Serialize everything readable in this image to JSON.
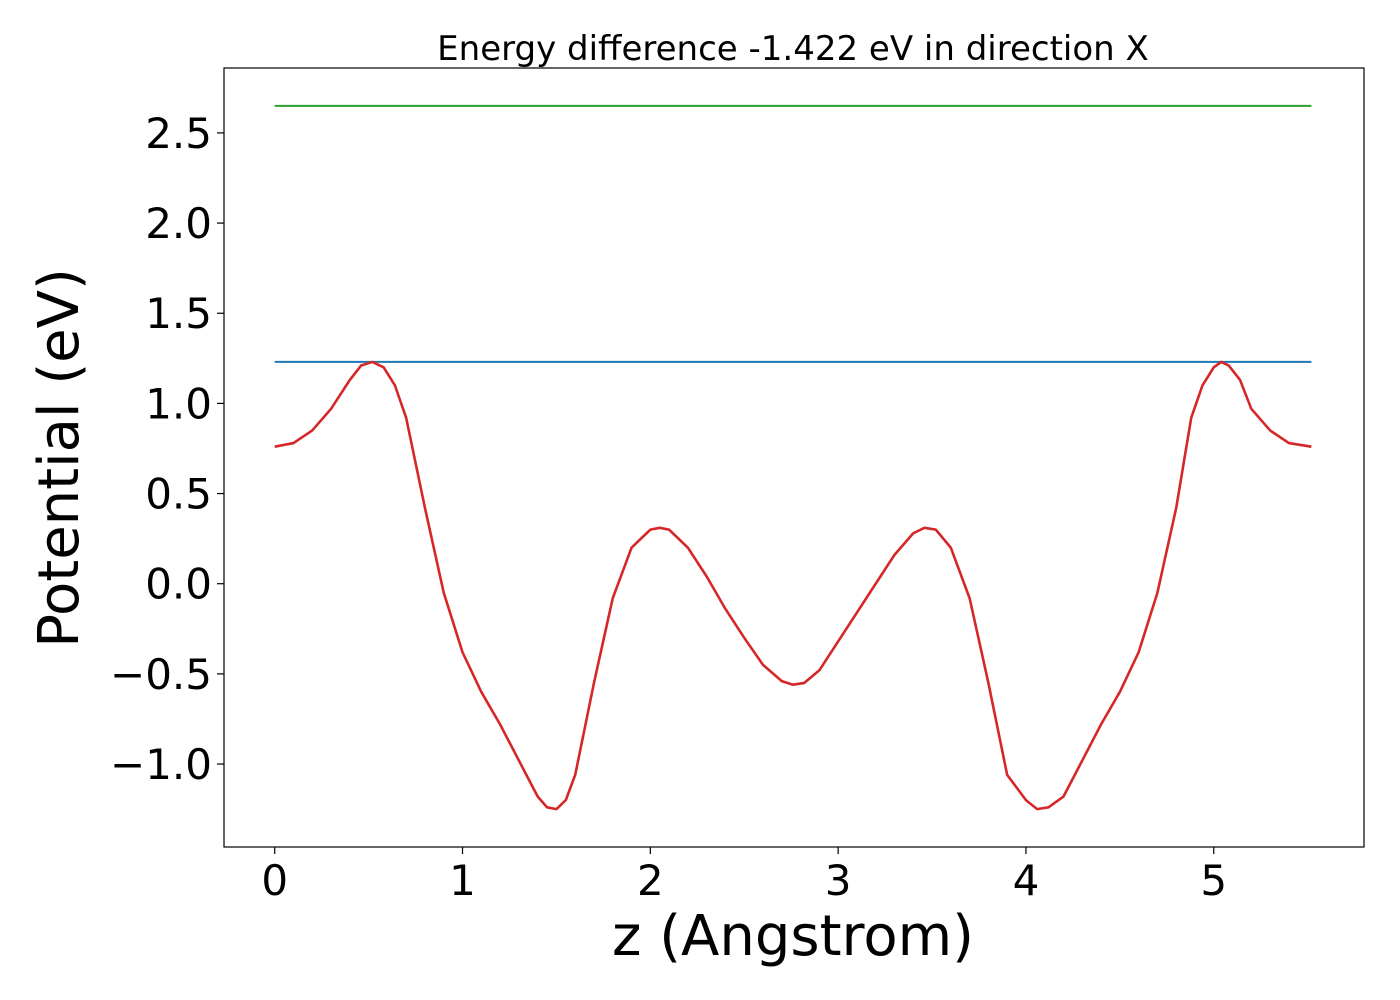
{
  "chart_data": {
    "type": "line",
    "title": "Energy difference -1.422 eV in direction X",
    "xlabel": "z (Angstrom)",
    "ylabel": "Potential (eV)",
    "xlim": [
      -0.27,
      5.8
    ],
    "ylim": [
      -1.46,
      2.86
    ],
    "xticks": [
      0,
      1,
      2,
      3,
      4,
      5
    ],
    "xtick_labels": [
      "0",
      "1",
      "2",
      "3",
      "4",
      "5"
    ],
    "yticks": [
      -1.0,
      -0.5,
      0.0,
      0.5,
      1.0,
      1.5,
      2.0,
      2.5
    ],
    "ytick_labels": [
      "−1.0",
      "−0.5",
      "0.0",
      "0.5",
      "1.0",
      "1.5",
      "2.0",
      "2.5"
    ],
    "grid": false,
    "series": [
      {
        "color": "#2ca02c",
        "x": [
          0,
          5.52
        ],
        "y": [
          2.65,
          2.65
        ]
      },
      {
        "color": "#1f77b4",
        "x": [
          0,
          5.52
        ],
        "y": [
          1.23,
          1.23
        ]
      },
      {
        "color": "#d62728",
        "x": [
          0,
          0.1,
          0.2,
          0.3,
          0.4,
          0.46,
          0.52,
          0.58,
          0.64,
          0.7,
          0.8,
          0.9,
          1.0,
          1.1,
          1.2,
          1.3,
          1.4,
          1.45,
          1.5,
          1.55,
          1.6,
          1.7,
          1.8,
          1.9,
          2.0,
          2.05,
          2.1,
          2.2,
          2.3,
          2.4,
          2.5,
          2.6,
          2.7,
          2.76,
          2.82,
          2.9,
          3.0,
          3.1,
          3.2,
          3.3,
          3.4,
          3.46,
          3.52,
          3.6,
          3.7,
          3.8,
          3.9,
          4.0,
          4.06,
          4.12,
          4.2,
          4.3,
          4.4,
          4.5,
          4.6,
          4.7,
          4.8,
          4.88,
          4.94,
          5.0,
          5.04,
          5.08,
          5.14,
          5.2,
          5.3,
          5.4,
          5.52
        ],
        "y": [
          0.76,
          0.78,
          0.85,
          0.97,
          1.13,
          1.21,
          1.23,
          1.2,
          1.1,
          0.92,
          0.42,
          -0.05,
          -0.38,
          -0.6,
          -0.78,
          -0.98,
          -1.18,
          -1.24,
          -1.25,
          -1.2,
          -1.06,
          -0.55,
          -0.08,
          0.2,
          0.3,
          0.31,
          0.3,
          0.2,
          0.04,
          -0.14,
          -0.3,
          -0.45,
          -0.54,
          -0.56,
          -0.55,
          -0.48,
          -0.32,
          -0.16,
          0.0,
          0.16,
          0.28,
          0.31,
          0.3,
          0.2,
          -0.08,
          -0.55,
          -1.06,
          -1.2,
          -1.25,
          -1.24,
          -1.18,
          -0.98,
          -0.78,
          -0.6,
          -0.38,
          -0.05,
          0.42,
          0.92,
          1.1,
          1.2,
          1.23,
          1.21,
          1.13,
          0.97,
          0.85,
          0.78,
          0.76
        ]
      }
    ]
  }
}
